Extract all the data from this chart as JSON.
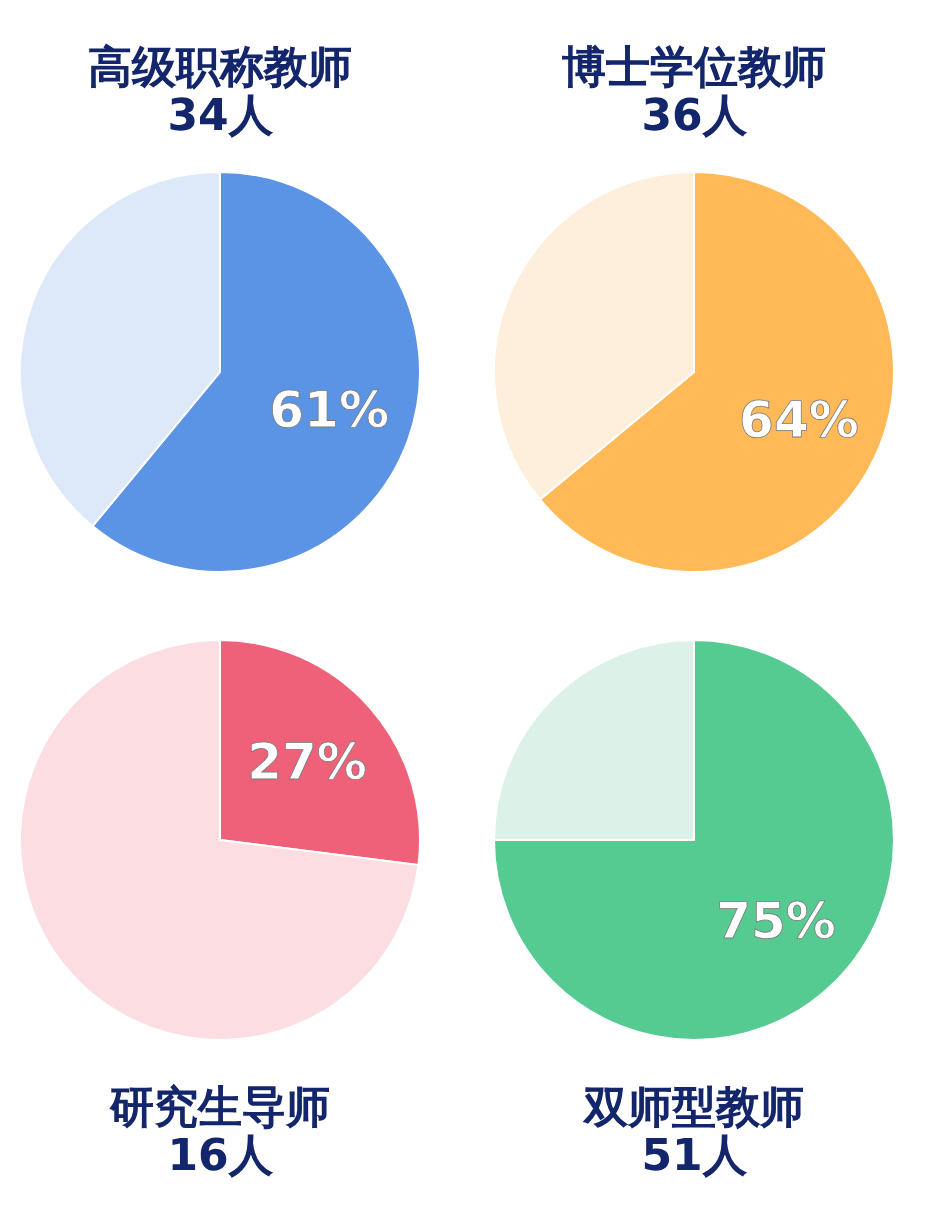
{
  "chart_data": [
    {
      "type": "pie",
      "title": "高级职称教师",
      "subtitle": "34人",
      "categories": [
        null,
        null
      ],
      "values": [
        61,
        39
      ],
      "colors": [
        "#5b93e5",
        "#dde8f8"
      ],
      "value_labels": [
        "61%",
        null
      ]
    },
    {
      "type": "pie",
      "title": "博士学位教师",
      "subtitle": "36人",
      "categories": [
        null,
        null
      ],
      "values": [
        64,
        36
      ],
      "colors": [
        "#ffb957",
        "#fdefdc"
      ],
      "value_labels": [
        "64%",
        null
      ]
    },
    {
      "type": "pie",
      "title": "研究生导师",
      "subtitle": "16人",
      "categories": [
        null,
        null
      ],
      "values": [
        27,
        73
      ],
      "colors": [
        "#ef6178",
        "#fbdde2"
      ],
      "value_labels": [
        "27%",
        null
      ]
    },
    {
      "type": "pie",
      "title": "双师型教师",
      "subtitle": "51人",
      "categories": [
        null,
        null
      ],
      "values": [
        75,
        25
      ],
      "colors": [
        "#55cb92",
        "#dcf2e8"
      ],
      "value_labels": [
        "75%",
        null
      ]
    }
  ]
}
